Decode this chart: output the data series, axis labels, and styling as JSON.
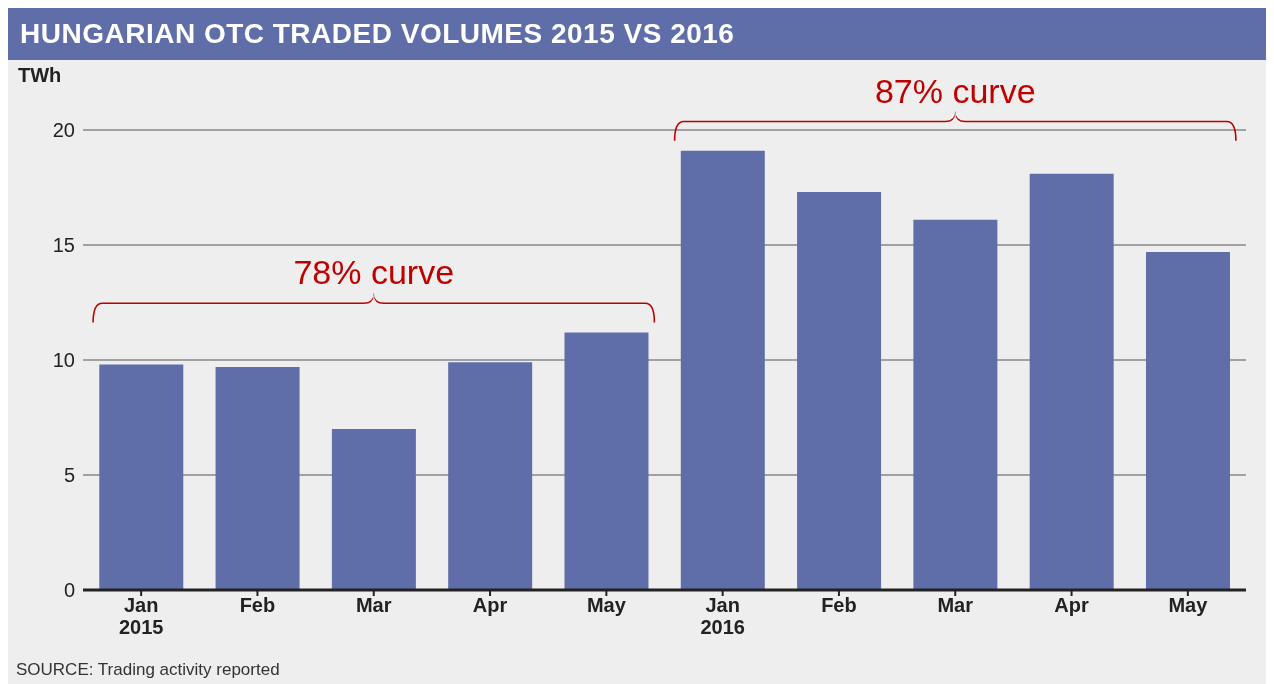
{
  "chart_data": {
    "type": "bar",
    "title": "HUNGARIAN OTC TRADED VOLUMES 2015 VS 2016",
    "ylabel": "TWh",
    "categories": [
      "Jan 2015",
      "Feb",
      "Mar",
      "Apr",
      "May",
      "Jan 2016",
      "Feb",
      "Mar",
      "Apr",
      "May"
    ],
    "values": [
      9.8,
      9.7,
      7.0,
      9.9,
      11.2,
      19.1,
      17.3,
      16.1,
      18.1,
      14.7
    ],
    "color": "#5f6ea8",
    "ylim": [
      0,
      20
    ],
    "yticks": [
      0,
      5,
      10,
      15,
      20
    ],
    "grid": "y",
    "annotations": [
      "78% curve",
      "87% curve",
      "SOURCE: Trading activity reported"
    ]
  }
}
